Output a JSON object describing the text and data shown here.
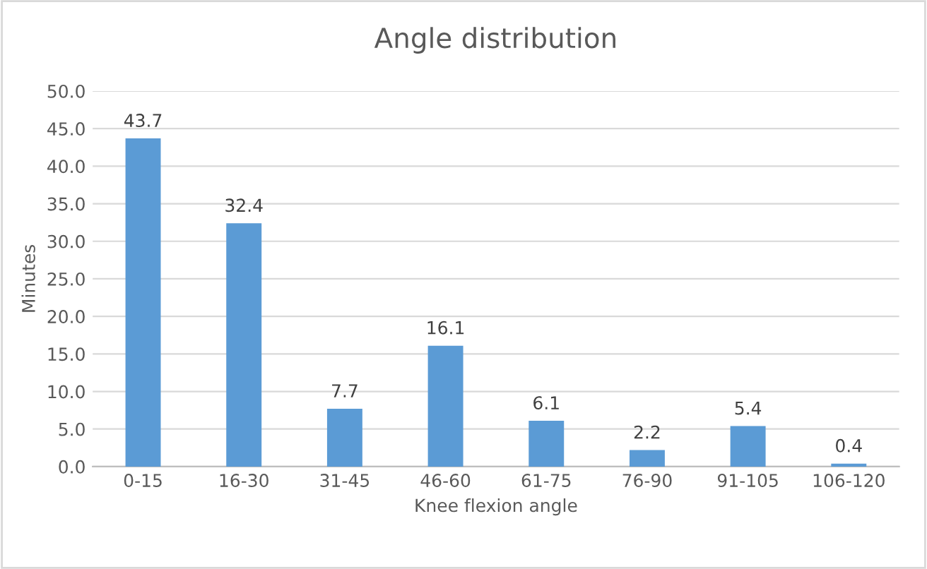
{
  "chart_data": {
    "type": "bar",
    "title": "Angle distribution",
    "xlabel": "Knee flexion angle",
    "ylabel": "Minutes",
    "categories": [
      "0-15",
      "16-30",
      "31-45",
      "46-60",
      "61-75",
      "76-90",
      "91-105",
      "106-120"
    ],
    "values": [
      43.7,
      32.4,
      7.7,
      16.1,
      6.1,
      2.2,
      5.4,
      0.4
    ],
    "color": "#5b9bd5",
    "ylim": [
      0,
      50
    ],
    "yticks": [
      {
        "value": 0,
        "label": "0.0"
      },
      {
        "value": 5,
        "label": "5.0"
      },
      {
        "value": 10,
        "label": "10.0"
      },
      {
        "value": 15,
        "label": "15.0"
      },
      {
        "value": 20,
        "label": "20.0"
      },
      {
        "value": 25,
        "label": "25.0"
      },
      {
        "value": 30,
        "label": "30.0"
      },
      {
        "value": 35,
        "label": "35.0"
      },
      {
        "value": 40,
        "label": "40.0"
      },
      {
        "value": 45,
        "label": "45.0"
      },
      {
        "value": 50,
        "label": "50.0"
      }
    ],
    "grid": "y",
    "data_labels": true
  }
}
